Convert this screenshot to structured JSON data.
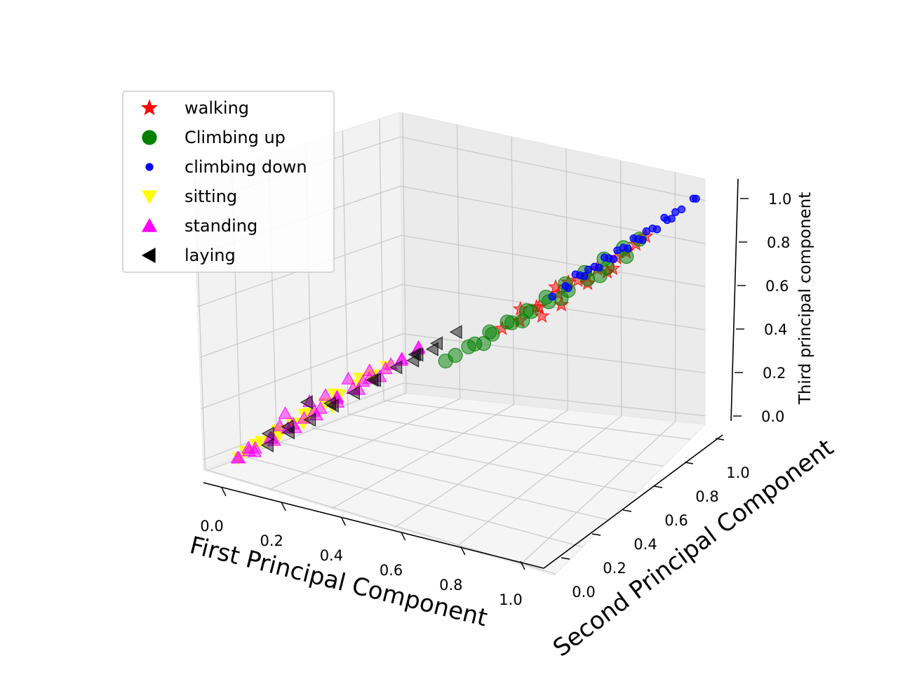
{
  "chart_data": {
    "type": "scatter",
    "projection": "3d",
    "title": "",
    "xlabel": "First Principal Component",
    "ylabel": "Second Principal Component",
    "zlabel": "Third principal component",
    "xlim": [
      0.0,
      1.0
    ],
    "ylim": [
      0.0,
      1.0
    ],
    "zlim": [
      0.0,
      1.0
    ],
    "x_ticks": [
      "0.0",
      "0.2",
      "0.4",
      "0.6",
      "0.8",
      "1.0"
    ],
    "y_ticks": [
      "0.0",
      "0.2",
      "0.4",
      "0.6",
      "0.8",
      "1.0"
    ],
    "z_ticks": [
      "0.0",
      "0.2",
      "0.4",
      "0.6",
      "0.8",
      "1.0"
    ],
    "grid": true,
    "legend_position": "top-left",
    "series": [
      {
        "name": "walking",
        "marker": "star",
        "color": "#ff0000",
        "alpha": 0.5,
        "points": [
          [
            0.68,
            0.62,
            0.6
          ],
          [
            0.72,
            0.66,
            0.65
          ],
          [
            0.76,
            0.7,
            0.7
          ],
          [
            0.8,
            0.74,
            0.74
          ],
          [
            0.84,
            0.78,
            0.78
          ],
          [
            0.88,
            0.82,
            0.83
          ],
          [
            0.7,
            0.6,
            0.58
          ],
          [
            0.74,
            0.64,
            0.62
          ],
          [
            0.78,
            0.72,
            0.68
          ],
          [
            0.82,
            0.76,
            0.72
          ],
          [
            0.86,
            0.8,
            0.8
          ],
          [
            0.64,
            0.58,
            0.55
          ],
          [
            0.6,
            0.55,
            0.52
          ],
          [
            0.9,
            0.84,
            0.86
          ],
          [
            0.66,
            0.64,
            0.58
          ],
          [
            0.79,
            0.7,
            0.73
          ],
          [
            0.73,
            0.7,
            0.68
          ],
          [
            0.62,
            0.62,
            0.57
          ],
          [
            0.85,
            0.74,
            0.76
          ],
          [
            0.7,
            0.68,
            0.66
          ]
        ]
      },
      {
        "name": "Climbing up",
        "marker": "circle",
        "color": "#008000",
        "alpha": 0.5,
        "points": [
          [
            0.5,
            0.46,
            0.42
          ],
          [
            0.54,
            0.5,
            0.46
          ],
          [
            0.58,
            0.53,
            0.5
          ],
          [
            0.62,
            0.57,
            0.54
          ],
          [
            0.66,
            0.61,
            0.58
          ],
          [
            0.7,
            0.64,
            0.62
          ],
          [
            0.74,
            0.68,
            0.66
          ],
          [
            0.78,
            0.72,
            0.7
          ],
          [
            0.82,
            0.76,
            0.74
          ],
          [
            0.86,
            0.8,
            0.78
          ],
          [
            0.52,
            0.5,
            0.44
          ],
          [
            0.56,
            0.55,
            0.49
          ],
          [
            0.6,
            0.58,
            0.53
          ],
          [
            0.64,
            0.62,
            0.57
          ],
          [
            0.68,
            0.66,
            0.62
          ],
          [
            0.72,
            0.7,
            0.67
          ],
          [
            0.76,
            0.74,
            0.71
          ],
          [
            0.8,
            0.78,
            0.76
          ],
          [
            0.84,
            0.82,
            0.8
          ],
          [
            0.88,
            0.84,
            0.84
          ],
          [
            0.58,
            0.48,
            0.49
          ],
          [
            0.66,
            0.56,
            0.57
          ],
          [
            0.74,
            0.64,
            0.65
          ],
          [
            0.82,
            0.72,
            0.73
          ],
          [
            0.48,
            0.44,
            0.4
          ]
        ]
      },
      {
        "name": "climbing down",
        "marker": "circle-small",
        "color": "#0000ff",
        "alpha": 0.7,
        "points": [
          [
            0.72,
            0.7,
            0.66
          ],
          [
            0.75,
            0.73,
            0.7
          ],
          [
            0.78,
            0.76,
            0.73
          ],
          [
            0.81,
            0.79,
            0.76
          ],
          [
            0.84,
            0.82,
            0.8
          ],
          [
            0.87,
            0.85,
            0.83
          ],
          [
            0.9,
            0.88,
            0.87
          ],
          [
            0.93,
            0.91,
            0.9
          ],
          [
            0.96,
            0.94,
            0.94
          ],
          [
            0.99,
            0.97,
            0.98
          ],
          [
            0.74,
            0.68,
            0.67
          ],
          [
            0.77,
            0.72,
            0.71
          ],
          [
            0.8,
            0.75,
            0.74
          ],
          [
            0.83,
            0.78,
            0.77
          ],
          [
            0.86,
            0.81,
            0.81
          ],
          [
            0.89,
            0.84,
            0.84
          ],
          [
            0.92,
            0.87,
            0.88
          ],
          [
            0.95,
            0.9,
            0.92
          ],
          [
            0.76,
            0.76,
            0.71
          ],
          [
            0.82,
            0.82,
            0.78
          ],
          [
            0.88,
            0.88,
            0.85
          ],
          [
            0.94,
            0.94,
            0.92
          ],
          [
            0.7,
            0.66,
            0.63
          ],
          [
            0.85,
            0.86,
            0.82
          ],
          [
            0.91,
            0.93,
            0.89
          ],
          [
            0.79,
            0.8,
            0.75
          ],
          [
            0.97,
            0.99,
            0.96
          ],
          [
            0.73,
            0.74,
            0.69
          ]
        ]
      },
      {
        "name": "sitting",
        "marker": "triangle-down",
        "color": "#ffff00",
        "alpha": 0.8,
        "points": [
          [
            0.05,
            0.06,
            0.08
          ],
          [
            0.08,
            0.1,
            0.11
          ],
          [
            0.11,
            0.14,
            0.14
          ],
          [
            0.14,
            0.17,
            0.17
          ],
          [
            0.17,
            0.21,
            0.2
          ],
          [
            0.2,
            0.25,
            0.23
          ],
          [
            0.23,
            0.28,
            0.26
          ],
          [
            0.26,
            0.32,
            0.29
          ],
          [
            0.29,
            0.36,
            0.32
          ],
          [
            0.32,
            0.39,
            0.35
          ],
          [
            0.06,
            0.1,
            0.09
          ],
          [
            0.1,
            0.16,
            0.13
          ],
          [
            0.15,
            0.22,
            0.18
          ],
          [
            0.2,
            0.3,
            0.24
          ],
          [
            0.25,
            0.36,
            0.29
          ],
          [
            0.04,
            0.04,
            0.06
          ],
          [
            0.12,
            0.12,
            0.13
          ],
          [
            0.18,
            0.16,
            0.19
          ],
          [
            0.24,
            0.22,
            0.25
          ],
          [
            0.3,
            0.34,
            0.33
          ]
        ]
      },
      {
        "name": "standing",
        "marker": "triangle-up",
        "color": "#ff00ff",
        "alpha": 0.5,
        "points": [
          [
            0.04,
            0.04,
            0.06
          ],
          [
            0.07,
            0.08,
            0.09
          ],
          [
            0.1,
            0.12,
            0.12
          ],
          [
            0.13,
            0.16,
            0.15
          ],
          [
            0.16,
            0.2,
            0.18
          ],
          [
            0.19,
            0.24,
            0.21
          ],
          [
            0.22,
            0.28,
            0.24
          ],
          [
            0.25,
            0.32,
            0.27
          ],
          [
            0.28,
            0.36,
            0.3
          ],
          [
            0.31,
            0.4,
            0.33
          ],
          [
            0.34,
            0.44,
            0.36
          ],
          [
            0.37,
            0.48,
            0.39
          ],
          [
            0.05,
            0.08,
            0.07
          ],
          [
            0.09,
            0.13,
            0.11
          ],
          [
            0.13,
            0.19,
            0.15
          ],
          [
            0.17,
            0.24,
            0.19
          ],
          [
            0.21,
            0.3,
            0.23
          ],
          [
            0.26,
            0.36,
            0.28
          ],
          [
            0.31,
            0.43,
            0.33
          ],
          [
            0.36,
            0.5,
            0.38
          ],
          [
            0.08,
            0.06,
            0.09
          ],
          [
            0.12,
            0.1,
            0.13
          ],
          [
            0.16,
            0.15,
            0.17
          ],
          [
            0.2,
            0.2,
            0.21
          ],
          [
            0.24,
            0.25,
            0.25
          ],
          [
            0.28,
            0.3,
            0.29
          ],
          [
            0.32,
            0.35,
            0.33
          ],
          [
            0.03,
            0.05,
            0.05
          ],
          [
            0.06,
            0.06,
            0.1
          ],
          [
            0.11,
            0.15,
            0.16
          ],
          [
            0.19,
            0.27,
            0.25
          ],
          [
            0.27,
            0.38,
            0.32
          ],
          [
            0.15,
            0.25,
            0.22
          ],
          [
            0.1,
            0.2,
            0.18
          ],
          [
            0.35,
            0.42,
            0.37
          ],
          [
            0.23,
            0.33,
            0.3
          ]
        ]
      },
      {
        "name": "laying",
        "marker": "triangle-left",
        "color": "#000000",
        "alpha": 0.45,
        "points": [
          [
            0.1,
            0.1,
            0.1
          ],
          [
            0.14,
            0.15,
            0.14
          ],
          [
            0.18,
            0.2,
            0.18
          ],
          [
            0.22,
            0.26,
            0.22
          ],
          [
            0.26,
            0.31,
            0.26
          ],
          [
            0.3,
            0.36,
            0.3
          ],
          [
            0.34,
            0.41,
            0.34
          ],
          [
            0.38,
            0.46,
            0.38
          ],
          [
            0.42,
            0.5,
            0.42
          ],
          [
            0.46,
            0.54,
            0.46
          ],
          [
            0.12,
            0.18,
            0.14
          ],
          [
            0.2,
            0.28,
            0.21
          ],
          [
            0.28,
            0.38,
            0.28
          ],
          [
            0.36,
            0.48,
            0.36
          ],
          [
            0.4,
            0.4,
            0.4
          ],
          [
            0.44,
            0.44,
            0.44
          ],
          [
            0.08,
            0.14,
            0.12
          ],
          [
            0.16,
            0.22,
            0.24
          ]
        ]
      }
    ]
  }
}
